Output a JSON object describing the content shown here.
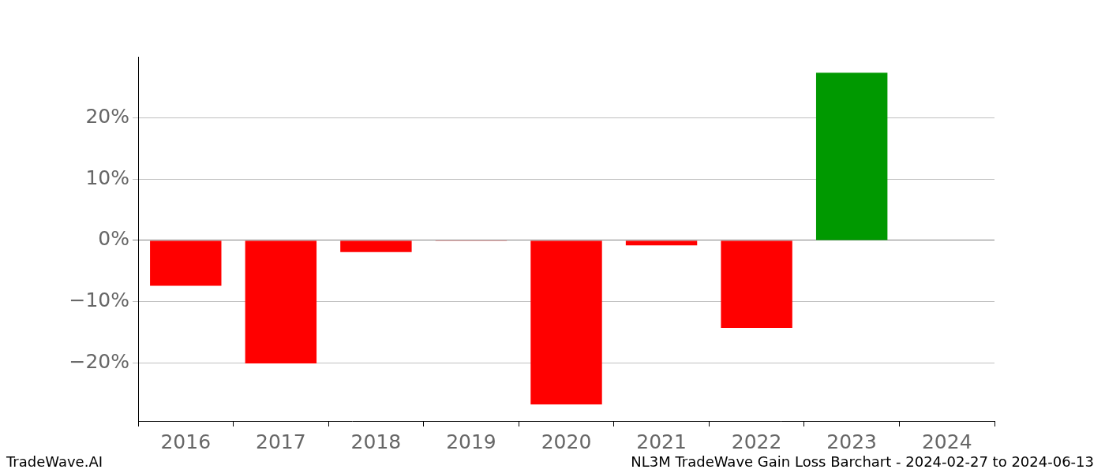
{
  "chart_data": {
    "type": "bar",
    "categories": [
      "2016",
      "2017",
      "2018",
      "2019",
      "2020",
      "2021",
      "2022",
      "2023",
      "2024"
    ],
    "values": [
      -7.4,
      -20.1,
      -1.9,
      -0.1,
      -26.8,
      -0.8,
      -14.3,
      27.4,
      0
    ],
    "colors": [
      "#ff0000",
      "#ff0000",
      "#ff0000",
      "#ff0000",
      "#ff0000",
      "#ff0000",
      "#ff0000",
      "#009900",
      "#ff0000"
    ],
    "ylim": [
      -29.5,
      30
    ],
    "yticks": [
      {
        "value": -20,
        "label": "−20%"
      },
      {
        "value": -10,
        "label": "−10%"
      },
      {
        "value": 0,
        "label": "0%"
      },
      {
        "value": 10,
        "label": "10%"
      },
      {
        "value": 20,
        "label": "20%"
      }
    ],
    "grid": true,
    "annotations": [
      "TradeWave.AI",
      "NL3M TradeWave Gain Loss Barchart - 2024-02-27 to 2024-06-13"
    ]
  }
}
